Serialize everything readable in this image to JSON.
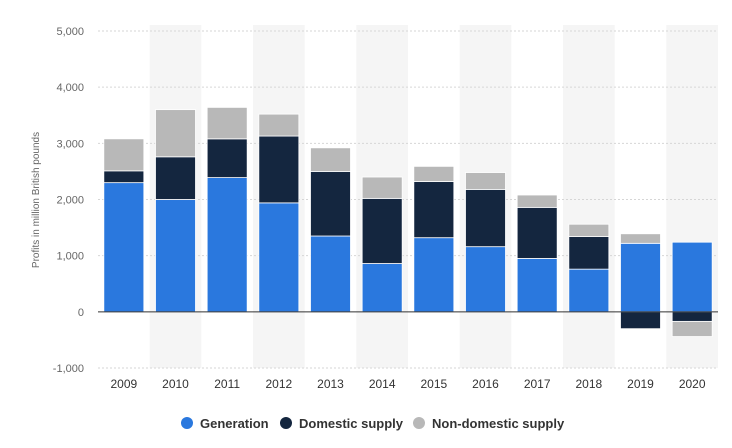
{
  "chart_data": {
    "type": "bar",
    "stacked": true,
    "title": "",
    "xlabel": "",
    "ylabel": "Profits in million British pounds",
    "categories": [
      "2009",
      "2010",
      "2011",
      "2012",
      "2013",
      "2014",
      "2015",
      "2016",
      "2017",
      "2018",
      "2019",
      "2020"
    ],
    "series": [
      {
        "name": "Generation",
        "color": "#2a78de",
        "values": [
          2300,
          2000,
          2390,
          1940,
          1350,
          860,
          1320,
          1160,
          950,
          760,
          1220,
          1240
        ]
      },
      {
        "name": "Domestic supply",
        "color": "#14263f",
        "values": [
          210,
          760,
          690,
          1190,
          1150,
          1160,
          1000,
          1020,
          910,
          580,
          -300,
          -170
        ]
      },
      {
        "name": "Non-domestic supply",
        "color": "#b8b8b8",
        "values": [
          570,
          840,
          560,
          390,
          420,
          380,
          270,
          300,
          220,
          220,
          170,
          -270
        ]
      }
    ],
    "ylim": [
      -1000,
      5000
    ],
    "yticks": [
      -1000,
      0,
      1000,
      2000,
      3000,
      4000,
      5000
    ],
    "ytick_labels": [
      "-1,000",
      "0",
      "1,000",
      "2,000",
      "3,000",
      "4,000",
      "5,000"
    ],
    "grid": true,
    "legend_position": "bottom-center"
  }
}
